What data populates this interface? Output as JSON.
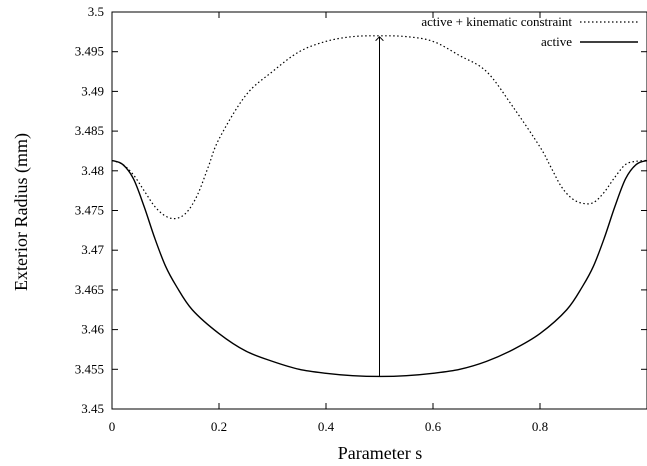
{
  "chart_data": {
    "type": "line",
    "title": "",
    "xlabel": "Parameter s",
    "ylabel": "Exterior Radius (mm)",
    "xlim": [
      0,
      1
    ],
    "ylim": [
      3.45,
      3.5
    ],
    "xticks": [
      0,
      0.2,
      0.4,
      0.6,
      0.8
    ],
    "xtick_labels": [
      "0",
      "0.2",
      "0.4",
      "0.6",
      "0.8"
    ],
    "yticks": [
      3.45,
      3.455,
      3.46,
      3.465,
      3.47,
      3.475,
      3.48,
      3.485,
      3.49,
      3.495,
      3.5
    ],
    "ytick_labels": [
      "3.45",
      "3.455",
      "3.46",
      "3.465",
      "3.47",
      "3.475",
      "3.48",
      "3.485",
      "3.49",
      "3.495",
      "3.5"
    ],
    "grid": false,
    "legend_position": "top-right",
    "series": [
      {
        "name": "active + kinematic constraint",
        "style": "dotted",
        "color": "#000000",
        "x": [
          0,
          0.02,
          0.04,
          0.06,
          0.08,
          0.1,
          0.12,
          0.14,
          0.16,
          0.18,
          0.2,
          0.25,
          0.3,
          0.35,
          0.4,
          0.45,
          0.5,
          0.55,
          0.6,
          0.65,
          0.7,
          0.75,
          0.8,
          0.82,
          0.84,
          0.86,
          0.88,
          0.9,
          0.92,
          0.94,
          0.96,
          0.98,
          1.0
        ],
        "y": [
          3.4813,
          3.4808,
          3.4795,
          3.4775,
          3.4755,
          3.4743,
          3.474,
          3.4748,
          3.477,
          3.4805,
          3.484,
          3.4895,
          3.4925,
          3.495,
          3.4963,
          3.4969,
          3.497,
          3.4969,
          3.4963,
          3.4945,
          3.4925,
          3.488,
          3.483,
          3.4805,
          3.478,
          3.4765,
          3.4759,
          3.476,
          3.4773,
          3.4792,
          3.4808,
          3.4812,
          3.4813
        ]
      },
      {
        "name": "active",
        "style": "solid",
        "color": "#000000",
        "x": [
          0,
          0.02,
          0.04,
          0.06,
          0.08,
          0.1,
          0.12,
          0.15,
          0.2,
          0.25,
          0.3,
          0.35,
          0.4,
          0.45,
          0.5,
          0.55,
          0.6,
          0.65,
          0.7,
          0.75,
          0.8,
          0.85,
          0.88,
          0.9,
          0.92,
          0.94,
          0.96,
          0.98,
          1.0
        ],
        "y": [
          3.4813,
          3.4808,
          3.479,
          3.4755,
          3.4715,
          3.468,
          3.4655,
          3.4625,
          3.4595,
          3.4573,
          3.456,
          3.455,
          3.4545,
          3.4542,
          3.4541,
          3.4542,
          3.4545,
          3.455,
          3.456,
          3.4575,
          3.4595,
          3.4625,
          3.4655,
          3.468,
          3.4715,
          3.4755,
          3.479,
          3.4808,
          3.4813
        ]
      }
    ],
    "annotations": [
      {
        "type": "arrow",
        "x": 0.5,
        "from_y": 3.4541,
        "to_y": 3.497
      }
    ]
  }
}
